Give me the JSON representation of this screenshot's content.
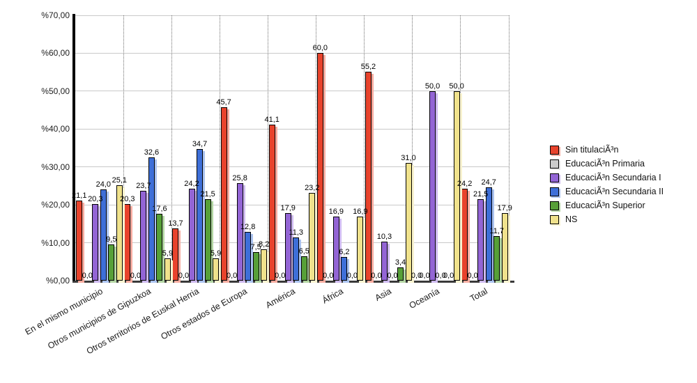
{
  "chart_data": {
    "type": "bar",
    "title": "",
    "xlabel": "",
    "ylabel": "",
    "ylim": [
      0,
      70
    ],
    "grid": true,
    "legend_position": "right",
    "value_label_format": "decimal-comma, one decimal",
    "categories": [
      "En el mismo municipio",
      "Otros municipios de Gipuzkoa",
      "Otros territorios de Euskal Herria",
      "Otros estados de Europa",
      "América",
      "África",
      "Asia",
      "Oceanía",
      "Total"
    ],
    "series": [
      {
        "name": "Sin titulaciÃ³n",
        "color": "#e8432c",
        "shadow": "#f6ab9f",
        "values": [
          21.1,
          20.3,
          13.7,
          45.7,
          41.1,
          60.0,
          55.2,
          0.0,
          24.2
        ]
      },
      {
        "name": "EducaciÃ³n Primaria",
        "color": "#cccccc",
        "shadow": "#e9e9e9",
        "values": [
          0.0,
          0.0,
          0.0,
          0.0,
          0.0,
          0.0,
          0.0,
          0.0,
          0.0
        ]
      },
      {
        "name": "EducaciÃ³n Secundaria I",
        "color": "#9365d5",
        "shadow": "#cdb9ee",
        "values": [
          20.3,
          23.7,
          24.2,
          25.8,
          17.9,
          16.9,
          10.3,
          50.0,
          21.5
        ]
      },
      {
        "name": "EducaciÃ³n Secundaria II",
        "color": "#3e6fd8",
        "shadow": "#abc3f0",
        "values": [
          24.0,
          32.6,
          34.7,
          12.8,
          11.3,
          6.2,
          0.0,
          0.0,
          24.7
        ]
      },
      {
        "name": "EducaciÃ³n Superior",
        "color": "#57a038",
        "shadow": "#b2d5a2",
        "values": [
          9.5,
          17.6,
          21.5,
          7.5,
          6.5,
          0.0,
          3.4,
          0.0,
          11.7
        ]
      },
      {
        "name": "NS",
        "color": "#f0e28c",
        "shadow": "#f9f3cf",
        "values": [
          25.1,
          5.9,
          5.9,
          8.2,
          23.2,
          16.9,
          31.0,
          50.0,
          17.9
        ]
      }
    ],
    "yticks": [
      {
        "value": 70,
        "label": "%70,00"
      },
      {
        "value": 60,
        "label": "%60,00"
      },
      {
        "value": 50,
        "label": "%50,00"
      },
      {
        "value": 40,
        "label": "%40,00"
      },
      {
        "value": 30,
        "label": "%30,00"
      },
      {
        "value": 20,
        "label": "%20,00"
      },
      {
        "value": 10,
        "label": "%10,00"
      },
      {
        "value": 0,
        "label": "%0,00"
      }
    ]
  }
}
